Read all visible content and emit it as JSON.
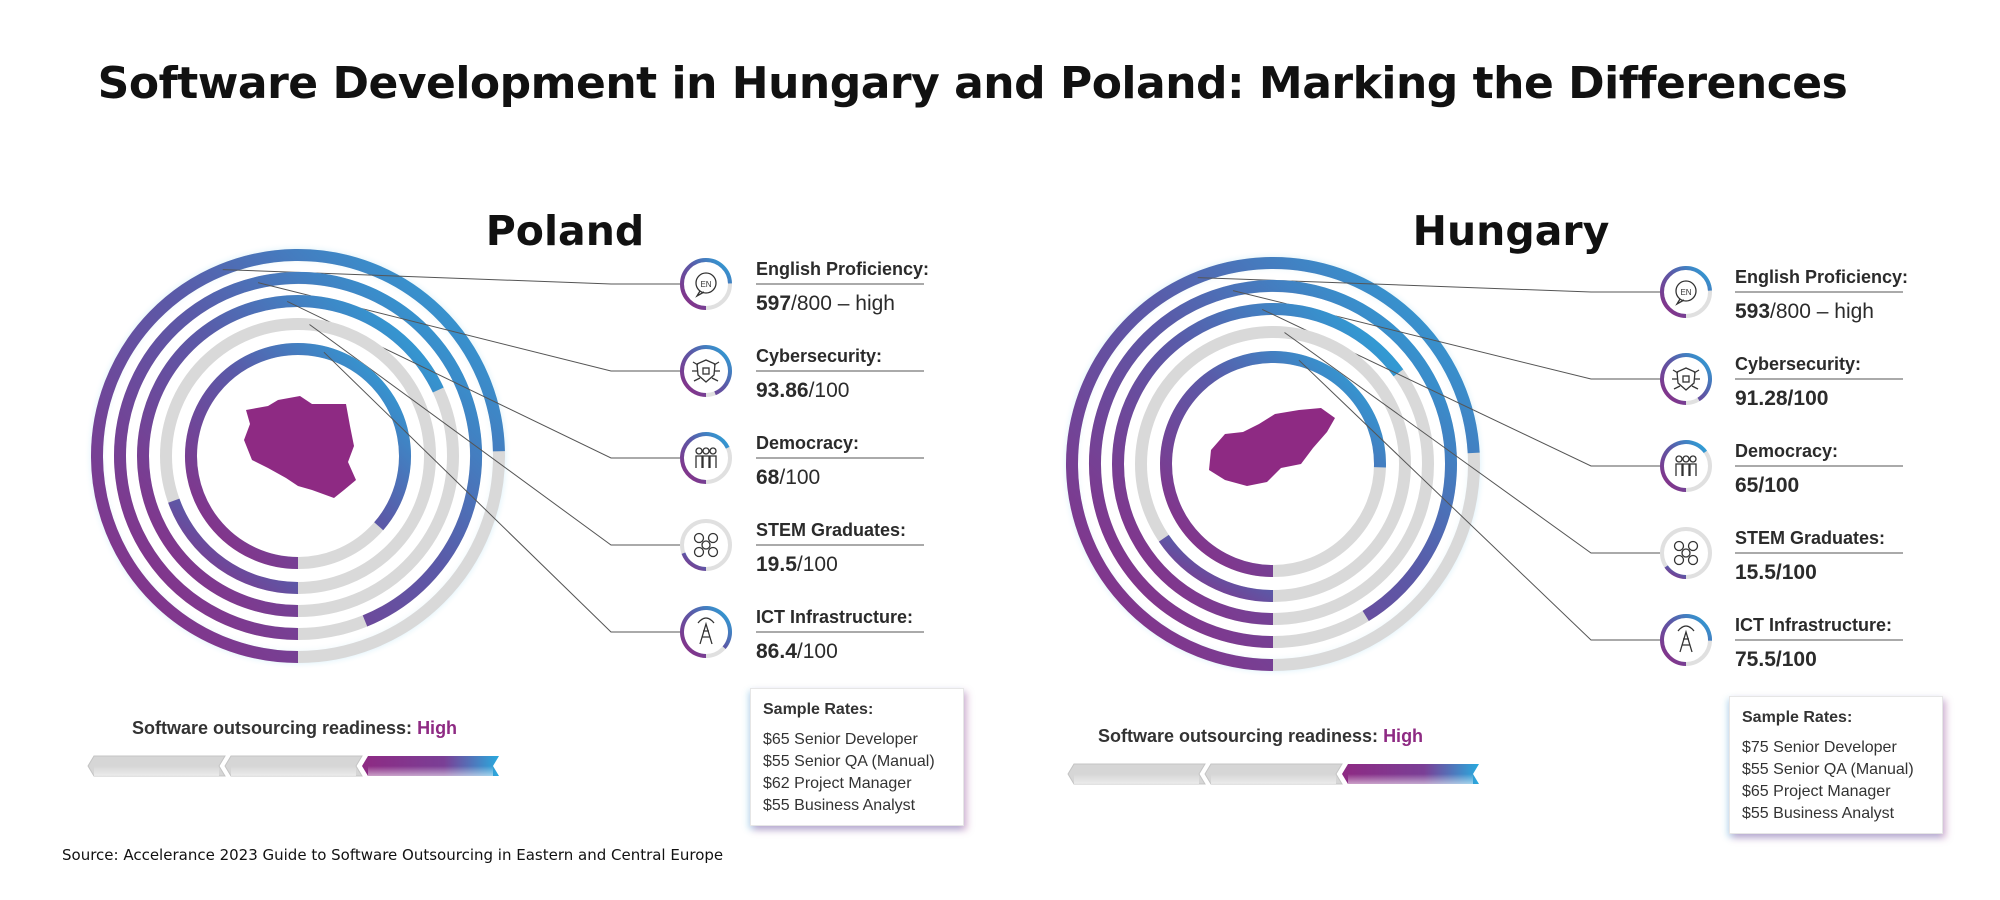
{
  "title": "Software Development in Hungary and Poland: Marking the Differences",
  "source": "Source: Accelerance 2023 Guide to Software Outsourcing in Eastern and Central Europe",
  "colors": {
    "purple": "#8e2a83",
    "blue": "#28aade",
    "mid": "#5a5aa8",
    "track": "#d9d9d9"
  },
  "chart_data": [
    {
      "type": "radial-bar",
      "country": "Poland",
      "metrics": [
        {
          "label": "English Proficiency:",
          "value_strong": "597",
          "value_rest": "/800 – high",
          "value": 597,
          "max": 800,
          "icon": "english-icon"
        },
        {
          "label": "Cybersecurity:",
          "value_strong": "93.86",
          "value_rest": "/100",
          "value": 93.86,
          "max": 100,
          "icon": "cybersecurity-icon"
        },
        {
          "label": "Democracy:",
          "value_strong": "68",
          "value_rest": "/100",
          "value": 68,
          "max": 100,
          "icon": "democracy-icon"
        },
        {
          "label": "STEM Graduates:",
          "value_strong": "19.5",
          "value_rest": "/100",
          "value": 19.5,
          "max": 100,
          "icon": "stem-icon"
        },
        {
          "label": "ICT Infrastructure:",
          "value_strong": "86.4",
          "value_rest": "/100",
          "value": 86.4,
          "max": 100,
          "icon": "ict-icon"
        }
      ],
      "readiness_label": "Software outsourcing readiness: ",
      "readiness_level": "High",
      "readiness_fraction": 1.0,
      "rates_title": "Sample Rates:",
      "rates": [
        "$65 Senior Developer",
        "$55 Senior QA (Manual)",
        "$62 Project Manager",
        "$55 Business Analyst"
      ]
    },
    {
      "type": "radial-bar",
      "country": "Hungary",
      "metrics": [
        {
          "label": "English Proficiency:",
          "value_strong": "593",
          "value_rest": "/800 – high",
          "value": 593,
          "max": 800,
          "icon": "english-icon"
        },
        {
          "label": "Cybersecurity:",
          "value_strong": "91.28/100",
          "value_rest": "",
          "value": 91.28,
          "max": 100,
          "icon": "cybersecurity-icon"
        },
        {
          "label": "Democracy:",
          "value_strong": "65/100",
          "value_rest": "",
          "value": 65,
          "max": 100,
          "icon": "democracy-icon"
        },
        {
          "label": "STEM Graduates:",
          "value_strong": "15.5/100",
          "value_rest": "",
          "value": 15.5,
          "max": 100,
          "icon": "stem-icon"
        },
        {
          "label": "ICT Infrastructure:",
          "value_strong": "75.5/100",
          "value_rest": "",
          "value": 75.5,
          "max": 100,
          "icon": "ict-icon"
        }
      ],
      "readiness_label": "Software outsourcing readiness: ",
      "readiness_level": "High",
      "readiness_fraction": 1.0,
      "rates_title": "Sample Rates:",
      "rates": [
        "$75 Senior Developer",
        "$55 Senior QA (Manual)",
        "$65 Project Manager",
        "$55 Business Analyst"
      ]
    }
  ]
}
